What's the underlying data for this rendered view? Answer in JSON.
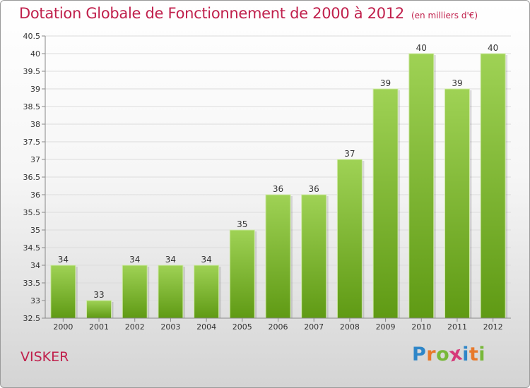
{
  "header": {
    "title": "Dotation Globale de Fonctionnement de 2000 à 2012",
    "subtitle": "(en milliers d'€)"
  },
  "footer": {
    "commune": "VISKER",
    "logo_letters": [
      "P",
      "r",
      "o",
      "x",
      "i",
      "t",
      "i"
    ],
    "logo_colors": [
      "#2e86c8",
      "#e8792b",
      "#78b83a",
      "#d63a7a",
      "#2e86c8",
      "#e8792b",
      "#78b83a"
    ]
  },
  "chart_data": {
    "type": "bar",
    "title": "Dotation Globale de Fonctionnement de 2000 à 2012",
    "subtitle": "(en milliers d'€)",
    "categories": [
      "2000",
      "2001",
      "2002",
      "2003",
      "2004",
      "2005",
      "2006",
      "2007",
      "2008",
      "2009",
      "2010",
      "2011",
      "2012"
    ],
    "values": [
      34,
      33,
      34,
      34,
      34,
      35,
      36,
      36,
      37,
      39,
      40,
      39,
      40
    ],
    "data_labels": [
      "34",
      "33",
      "34",
      "34",
      "34",
      "35",
      "36",
      "36",
      "37",
      "39",
      "40",
      "39",
      "40"
    ],
    "xlabel": "",
    "ylabel": "",
    "ylim": [
      32.5,
      40.5
    ],
    "yticks": [
      "32.5",
      "33",
      "33.5",
      "34",
      "34.5",
      "35",
      "35.5",
      "36",
      "36.5",
      "37",
      "37.5",
      "38",
      "38.5",
      "39",
      "39.5",
      "40",
      "40.5"
    ],
    "grid": true,
    "bar_color_top": "#9fd255",
    "bar_color_bottom": "#5f9a14",
    "accent_color": "#c0204c"
  }
}
